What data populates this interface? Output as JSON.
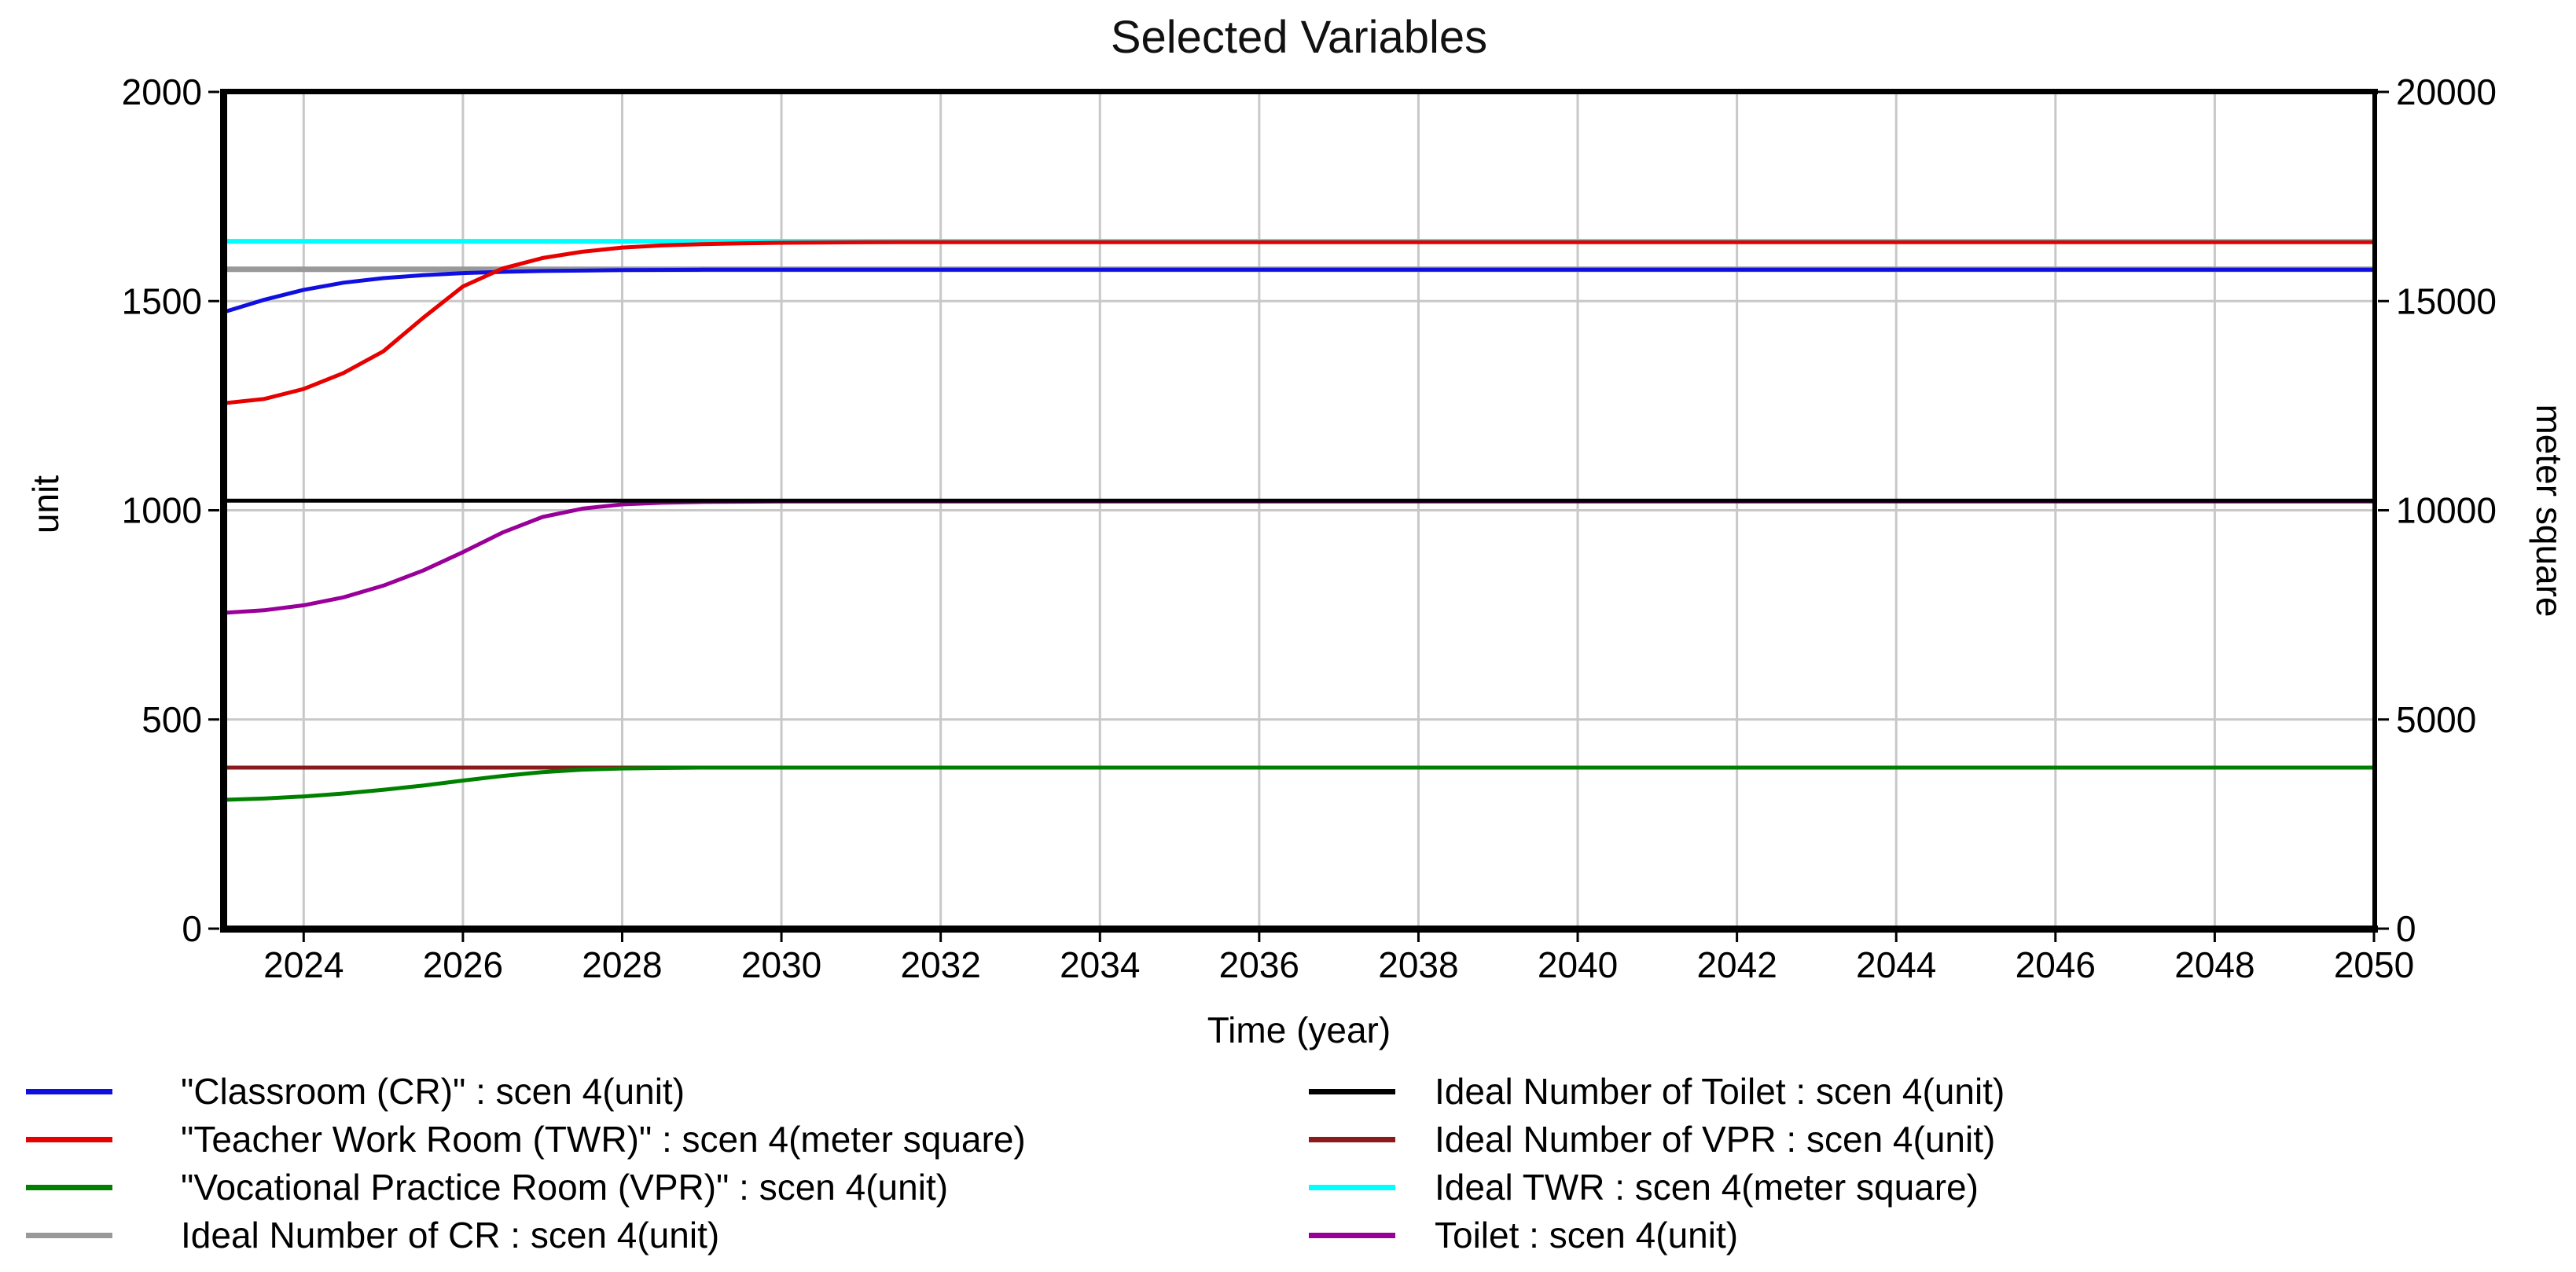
{
  "chart_data": {
    "type": "line",
    "title": "Selected Variables",
    "x": {
      "label": "Time (year)",
      "min": 2023,
      "max": 2050,
      "ticks": [
        2024,
        2026,
        2028,
        2030,
        2032,
        2034,
        2036,
        2038,
        2040,
        2042,
        2044,
        2046,
        2048,
        2050
      ]
    },
    "y_left": {
      "label": "unit",
      "min": 0,
      "max": 2000,
      "ticks": [
        0,
        500,
        1000,
        1500,
        2000
      ],
      "grid_ticks": [
        500,
        1000,
        1500
      ]
    },
    "y_right": {
      "label": "meter square",
      "min": 0,
      "max": 20000,
      "ticks": [
        0,
        5000,
        10000,
        15000,
        20000
      ]
    },
    "grid": true,
    "grid_color": "#c8c8c8",
    "frame_color": "#000000",
    "series": [
      {
        "name": "Ideal Number of CR : scen 4(unit)",
        "color": "#999999",
        "axis": "left",
        "width": 7,
        "points": [
          [
            2023,
            1576
          ],
          [
            2050,
            1576
          ]
        ]
      },
      {
        "name": "Ideal TWR : scen 4(meter square)",
        "color": "#00ffff",
        "axis": "right",
        "width": 6,
        "points": [
          [
            2023,
            16430
          ],
          [
            2050,
            16430
          ]
        ]
      },
      {
        "name": "Ideal Number of VPR : scen 4(unit)",
        "color": "#8b1a1a",
        "axis": "left",
        "width": 5,
        "points": [
          [
            2023,
            385
          ],
          [
            2050,
            385
          ]
        ]
      },
      {
        "name": "Toilet : scen 4(unit)",
        "color": "#990099",
        "axis": "left",
        "width": 5,
        "points": [
          [
            2023,
            755
          ],
          [
            2023.5,
            761
          ],
          [
            2024,
            773
          ],
          [
            2024.5,
            792
          ],
          [
            2025,
            820
          ],
          [
            2025.5,
            856
          ],
          [
            2026,
            900
          ],
          [
            2026.5,
            947
          ],
          [
            2027,
            984
          ],
          [
            2027.5,
            1004
          ],
          [
            2028,
            1014
          ],
          [
            2028.5,
            1018
          ],
          [
            2029,
            1020
          ],
          [
            2030,
            1021
          ],
          [
            2050,
            1021
          ]
        ]
      },
      {
        "name": "Ideal Number of Toilet : scen 4(unit)",
        "color": "#000000",
        "axis": "left",
        "width": 5,
        "points": [
          [
            2023,
            1023
          ],
          [
            2050,
            1023
          ]
        ]
      },
      {
        "name": "\"Classroom (CR)\" : scen 4(unit)",
        "color": "#0f0fe0",
        "axis": "left",
        "width": 5,
        "points": [
          [
            2023,
            1474
          ],
          [
            2023.5,
            1503
          ],
          [
            2024,
            1527
          ],
          [
            2024.5,
            1544
          ],
          [
            2025,
            1555
          ],
          [
            2025.5,
            1562
          ],
          [
            2026,
            1567
          ],
          [
            2026.5,
            1570
          ],
          [
            2027,
            1572
          ],
          [
            2027.5,
            1573
          ],
          [
            2028,
            1574
          ],
          [
            2029,
            1575
          ],
          [
            2050,
            1575
          ]
        ]
      },
      {
        "name": "\"Teacher Work Room (TWR)\" : scen 4(meter square)",
        "color": "#e60000",
        "axis": "right",
        "width": 5,
        "points": [
          [
            2023,
            12560
          ],
          [
            2023.5,
            12660
          ],
          [
            2024,
            12900
          ],
          [
            2024.5,
            13280
          ],
          [
            2025,
            13800
          ],
          [
            2025.5,
            14600
          ],
          [
            2026,
            15350
          ],
          [
            2026.5,
            15780
          ],
          [
            2027,
            16030
          ],
          [
            2027.5,
            16180
          ],
          [
            2028,
            16280
          ],
          [
            2028.5,
            16330
          ],
          [
            2029,
            16360
          ],
          [
            2029.5,
            16380
          ],
          [
            2030,
            16395
          ],
          [
            2031,
            16405
          ],
          [
            2032,
            16410
          ],
          [
            2050,
            16410
          ]
        ]
      },
      {
        "name": "\"Vocational Practice Room (VPR)\" : scen 4(unit)",
        "color": "#008000",
        "axis": "left",
        "width": 5,
        "points": [
          [
            2023,
            308
          ],
          [
            2023.5,
            311
          ],
          [
            2024,
            316
          ],
          [
            2024.5,
            323
          ],
          [
            2025,
            332
          ],
          [
            2025.5,
            342
          ],
          [
            2026,
            354
          ],
          [
            2026.5,
            365
          ],
          [
            2027,
            374
          ],
          [
            2027.5,
            380
          ],
          [
            2028,
            383
          ],
          [
            2028.5,
            384
          ],
          [
            2029,
            385
          ],
          [
            2050,
            385
          ]
        ]
      }
    ]
  },
  "legend": {
    "columns": [
      {
        "items": [
          {
            "label": "\"Classroom (CR)\" : scen 4(unit)",
            "color": "#0f0fe0"
          },
          {
            "label": "\"Teacher Work Room (TWR)\" : scen 4(meter square)",
            "color": "#e60000"
          },
          {
            "label": "\"Vocational Practice Room (VPR)\" : scen 4(unit)",
            "color": "#008000"
          },
          {
            "label": "Ideal Number of CR : scen 4(unit)",
            "color": "#999999"
          }
        ]
      },
      {
        "items": [
          {
            "label": "Ideal Number of Toilet : scen 4(unit)",
            "color": "#000000"
          },
          {
            "label": "Ideal Number of VPR : scen 4(unit)",
            "color": "#8b1a1a"
          },
          {
            "label": "Ideal TWR : scen 4(meter square)",
            "color": "#00ffff"
          },
          {
            "label": "Toilet : scen 4(unit)",
            "color": "#990099"
          }
        ]
      }
    ]
  }
}
